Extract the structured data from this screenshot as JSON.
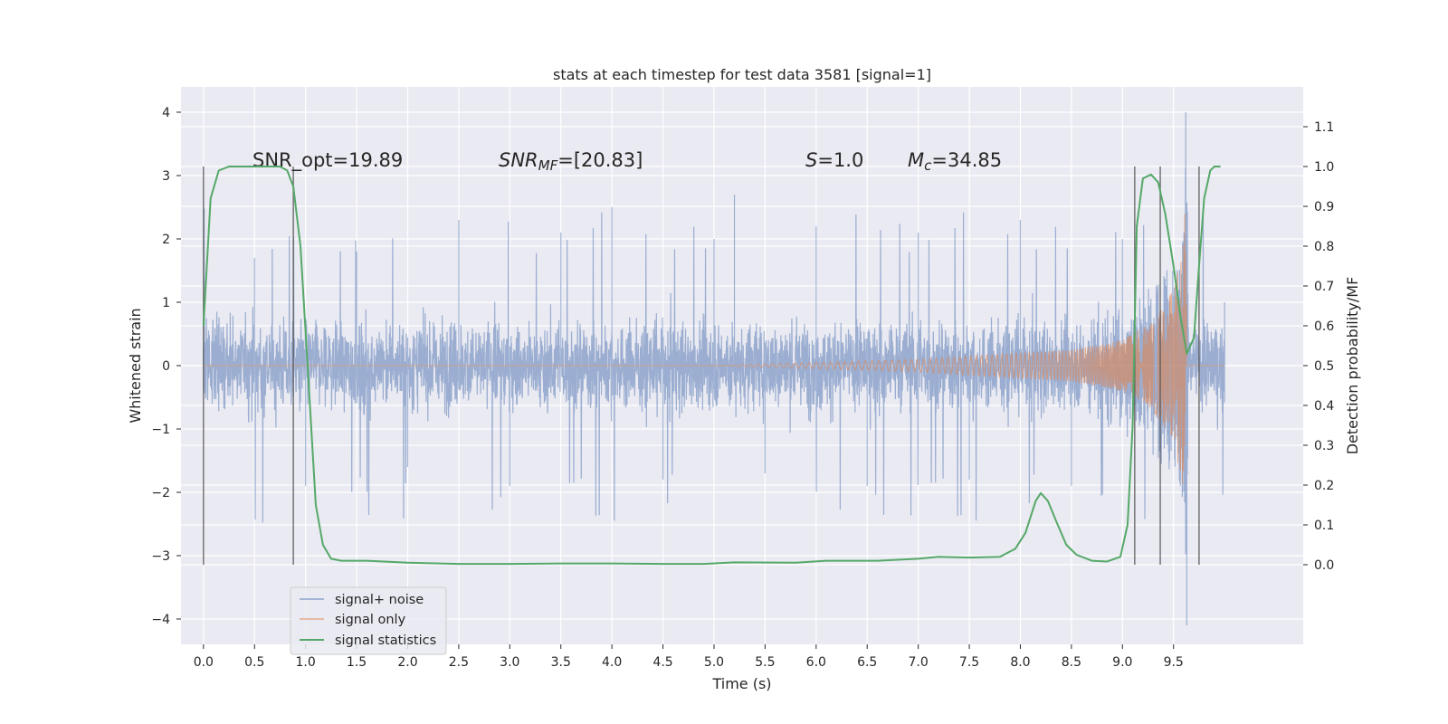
{
  "chart_data": {
    "type": "line",
    "title": "stats at each timestep for test data 3581 [signal=1]",
    "xlabel": "Time (s)",
    "ylabel_left": "Whitened strain",
    "ylabel_right": "Detection probability/MF",
    "xlim": [
      -0.22,
      10.77
    ],
    "ylim_left": [
      -4.4,
      4.4
    ],
    "ylim_right": [
      -0.2,
      1.2
    ],
    "x_ticks": [
      "0.0",
      "0.5",
      "1.0",
      "1.5",
      "2.0",
      "2.5",
      "3.0",
      "3.5",
      "4.0",
      "4.5",
      "5.0",
      "5.5",
      "6.0",
      "6.5",
      "7.0",
      "7.5",
      "8.0",
      "8.5",
      "9.0",
      "9.5"
    ],
    "y_ticks_left": [
      "4",
      "3",
      "2",
      "1",
      "0",
      "−1",
      "−2",
      "−3",
      "−4"
    ],
    "y_ticks_right": [
      "1.1",
      "1.0",
      "0.9",
      "0.8",
      "0.7",
      "0.6",
      "0.5",
      "0.4",
      "0.3",
      "0.2",
      "0.1",
      "0.0"
    ],
    "grid": true,
    "legend_position": "lower-left",
    "annotations": {
      "snr_opt": "SNR_opt=19.89",
      "snr_mf_name": "SNR",
      "snr_mf_sub": "MF",
      "snr_mf_value": "=[20.83]",
      "s_name": "S",
      "s_value": "=1.0",
      "mc_name": "M",
      "mc_sub": "c",
      "mc_value": "=34.85"
    },
    "detection_boundaries_s": [
      0.0,
      0.88,
      9.12,
      9.37,
      9.75
    ],
    "noise_envelope": {
      "x_range": [
        0.0,
        10.0
      ],
      "typical_abs": 1.2,
      "spike_max": 4.0,
      "spike_min": -4.1
    },
    "series": [
      {
        "name": "signal+ noise",
        "color": "#4c72b0",
        "points": [
          [
            0.0,
            0.3
          ],
          [
            0.5,
            1.7
          ],
          [
            1.0,
            -1.9
          ],
          [
            1.5,
            1.8
          ],
          [
            2.0,
            -1.6
          ],
          [
            2.5,
            2.3
          ],
          [
            3.0,
            -1.9
          ],
          [
            3.5,
            2.1
          ],
          [
            4.0,
            2.5
          ],
          [
            4.5,
            -1.8
          ],
          [
            5.0,
            2.0
          ],
          [
            5.2,
            2.7
          ],
          [
            5.5,
            -1.7
          ],
          [
            6.0,
            2.2
          ],
          [
            6.5,
            -1.9
          ],
          [
            7.0,
            2.1
          ],
          [
            7.5,
            -1.8
          ],
          [
            8.0,
            2.3
          ],
          [
            8.5,
            -1.9
          ],
          [
            9.0,
            2.0
          ],
          [
            9.62,
            4.0
          ],
          [
            9.63,
            -4.1
          ],
          [
            10.0,
            1.0
          ]
        ]
      },
      {
        "name": "signal only",
        "color": "#dd8452",
        "points": [
          [
            0.0,
            0.0
          ],
          [
            5.0,
            0.0
          ],
          [
            6.0,
            0.05
          ],
          [
            7.0,
            0.1
          ],
          [
            7.5,
            0.15
          ],
          [
            8.0,
            0.2
          ],
          [
            8.5,
            0.25
          ],
          [
            9.0,
            0.4
          ],
          [
            9.3,
            0.7
          ],
          [
            9.5,
            1.2
          ],
          [
            9.6,
            2.0
          ],
          [
            9.62,
            3.3
          ],
          [
            9.63,
            -3.1
          ],
          [
            9.65,
            0.0
          ],
          [
            10.0,
            0.0
          ]
        ]
      },
      {
        "name": "signal statistics",
        "color": "#55a868",
        "points": [
          [
            0.0,
            0.6
          ],
          [
            0.07,
            0.92
          ],
          [
            0.15,
            0.99
          ],
          [
            0.25,
            1.0
          ],
          [
            0.5,
            1.0
          ],
          [
            0.75,
            1.0
          ],
          [
            0.82,
            0.99
          ],
          [
            0.88,
            0.95
          ],
          [
            0.95,
            0.8
          ],
          [
            1.02,
            0.5
          ],
          [
            1.1,
            0.15
          ],
          [
            1.17,
            0.05
          ],
          [
            1.25,
            0.015
          ],
          [
            1.35,
            0.01
          ],
          [
            1.6,
            0.01
          ],
          [
            2.0,
            0.005
          ],
          [
            2.5,
            0.002
          ],
          [
            3.0,
            0.002
          ],
          [
            3.5,
            0.003
          ],
          [
            4.0,
            0.003
          ],
          [
            4.5,
            0.002
          ],
          [
            4.9,
            0.002
          ],
          [
            5.2,
            0.006
          ],
          [
            5.8,
            0.005
          ],
          [
            6.1,
            0.01
          ],
          [
            6.6,
            0.01
          ],
          [
            7.0,
            0.015
          ],
          [
            7.2,
            0.02
          ],
          [
            7.5,
            0.018
          ],
          [
            7.8,
            0.02
          ],
          [
            7.95,
            0.04
          ],
          [
            8.05,
            0.08
          ],
          [
            8.15,
            0.16
          ],
          [
            8.2,
            0.18
          ],
          [
            8.27,
            0.16
          ],
          [
            8.35,
            0.11
          ],
          [
            8.45,
            0.05
          ],
          [
            8.55,
            0.025
          ],
          [
            8.7,
            0.01
          ],
          [
            8.85,
            0.008
          ],
          [
            8.98,
            0.02
          ],
          [
            9.05,
            0.1
          ],
          [
            9.1,
            0.35
          ],
          [
            9.14,
            0.85
          ],
          [
            9.2,
            0.97
          ],
          [
            9.28,
            0.98
          ],
          [
            9.35,
            0.96
          ],
          [
            9.42,
            0.88
          ],
          [
            9.5,
            0.75
          ],
          [
            9.57,
            0.62
          ],
          [
            9.63,
            0.53
          ],
          [
            9.7,
            0.57
          ],
          [
            9.75,
            0.75
          ],
          [
            9.8,
            0.92
          ],
          [
            9.86,
            0.99
          ],
          [
            9.9,
            1.0
          ],
          [
            9.96,
            1.0
          ]
        ]
      }
    ]
  }
}
